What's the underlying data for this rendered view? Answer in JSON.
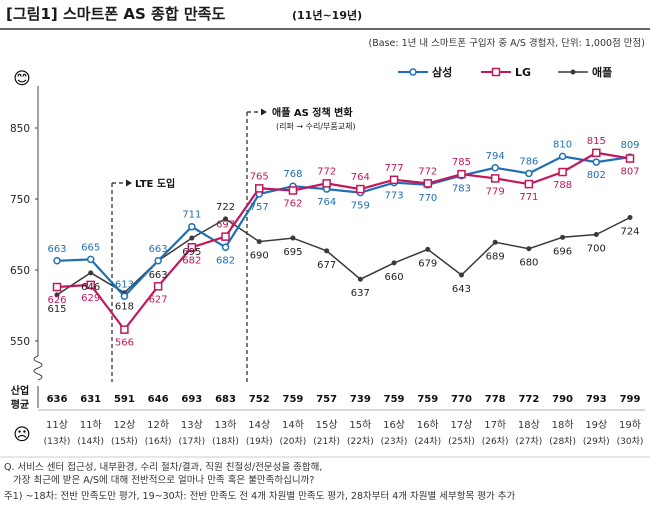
{
  "header": {
    "title": "[그림1] 스마트폰 AS 종합 만족도",
    "period": "(11년~19년)",
    "base_note": "(Base: 1년 내 스마트폰 구입자 중 A/S 경험자, 단위: 1,000점 만점)"
  },
  "chart_data": {
    "type": "line",
    "categories": [
      "11상",
      "11하",
      "12상",
      "12하",
      "13상",
      "13하",
      "14상",
      "14하",
      "15상",
      "15하",
      "16상",
      "16하",
      "17상",
      "17하",
      "18상",
      "18하",
      "19상",
      "19하"
    ],
    "waves": [
      "(13차)",
      "(14차)",
      "(15차)",
      "(16차)",
      "(17차)",
      "(18차)",
      "(19차)",
      "(20차)",
      "(21차)",
      "(22차)",
      "(23차)",
      "(24차)",
      "(25차)",
      "(26차)",
      "(27차)",
      "(28차)",
      "(29차)",
      "(30차)"
    ],
    "series": [
      {
        "name": "삼성",
        "color": "#1f6fb5",
        "values": [
          663,
          665,
          613,
          663,
          711,
          682,
          757,
          768,
          764,
          759,
          773,
          770,
          783,
          794,
          786,
          810,
          802,
          809
        ]
      },
      {
        "name": "LG",
        "color": "#c2185b",
        "values": [
          626,
          629,
          566,
          627,
          682,
          697,
          765,
          762,
          772,
          764,
          777,
          772,
          785,
          779,
          771,
          788,
          815,
          807
        ]
      },
      {
        "name": "애플",
        "color": "#3a3a3a",
        "values": [
          615,
          646,
          618,
          663,
          695,
          722,
          690,
          695,
          677,
          637,
          660,
          679,
          643,
          689,
          680,
          696,
          700,
          724
        ]
      }
    ],
    "industry_label": "산업\n평균",
    "industry_avg": [
      636,
      631,
      591,
      646,
      693,
      683,
      752,
      759,
      757,
      739,
      759,
      759,
      770,
      778,
      772,
      790,
      793,
      799
    ],
    "yticks": [
      550,
      650,
      750,
      850
    ],
    "ylim": [
      500,
      900
    ],
    "grid": false,
    "legend_position": "top-right",
    "annotations": [
      {
        "at": "12상",
        "text": "LTE 도입"
      },
      {
        "at": "14상",
        "text": "애플 AS 정책 변화",
        "subtext": "(리퍼 → 수리/부품교체)"
      }
    ],
    "top_icon": "😊",
    "bottom_icon": "☹"
  },
  "footer": {
    "question_line1": "Q. 서비스 센터 접근성, 내부환경, 수리 절차/결과, 직원 친절성/전문성을 종합해,",
    "question_line2": "가장 최근에 받은 A/S에 대해 전반적으로 얼마나 만족 혹은 불만족하십니까?",
    "note": "주1) ~18차: 전반 만족도만 평가, 19~30차: 전반 만족도 전 4개 차원별 만족도 평가, 28차부터 4개 차원별 세부항목 평가 추가"
  }
}
